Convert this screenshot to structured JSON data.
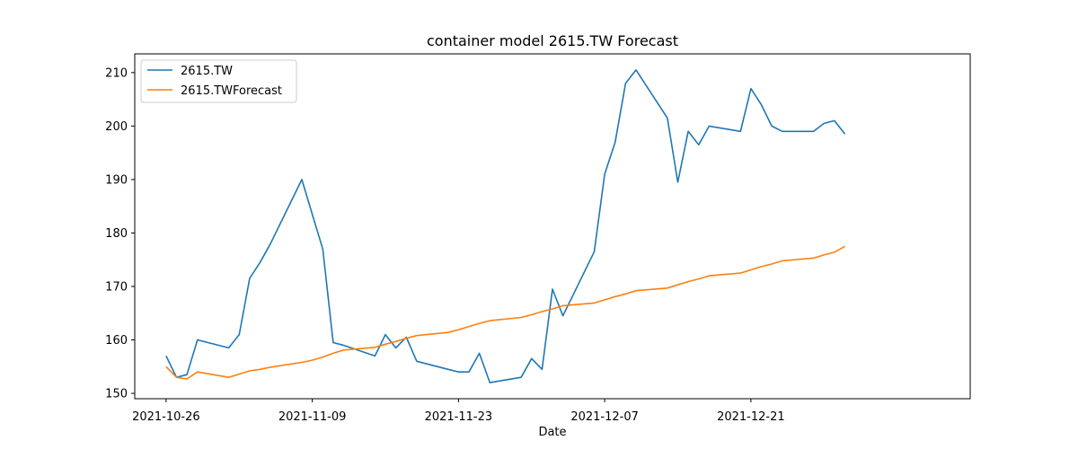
{
  "chart_data": {
    "type": "line",
    "title": "container model 2615.TW Forecast",
    "xlabel": "Date",
    "ylabel": "",
    "xlim": [
      "2021-10-23",
      "2022-01-11"
    ],
    "ylim": [
      149,
      213.5
    ],
    "x_ticks": [
      "2021-10-26",
      "2021-11-09",
      "2021-11-23",
      "2021-12-07",
      "2021-12-21"
    ],
    "y_ticks": [
      150,
      160,
      170,
      180,
      190,
      200,
      210
    ],
    "grid": false,
    "legend_position": "top-left",
    "x": [
      "2021-10-26",
      "2021-10-27",
      "2021-10-28",
      "2021-10-29",
      "2021-11-01",
      "2021-11-02",
      "2021-11-03",
      "2021-11-04",
      "2021-11-05",
      "2021-11-08",
      "2021-11-09",
      "2021-11-10",
      "2021-11-11",
      "2021-11-12",
      "2021-11-15",
      "2021-11-16",
      "2021-11-17",
      "2021-11-18",
      "2021-11-19",
      "2021-11-22",
      "2021-11-23",
      "2021-11-24",
      "2021-11-25",
      "2021-11-26",
      "2021-11-29",
      "2021-11-30",
      "2021-12-01",
      "2021-12-02",
      "2021-12-03",
      "2021-12-06",
      "2021-12-07",
      "2021-12-08",
      "2021-12-09",
      "2021-12-10",
      "2021-12-13",
      "2021-12-14",
      "2021-12-15",
      "2021-12-16",
      "2021-12-17",
      "2021-12-20",
      "2021-12-21",
      "2021-12-22",
      "2021-12-23",
      "2021-12-24",
      "2021-12-27",
      "2021-12-28",
      "2021-12-29",
      "2021-12-30"
    ],
    "series": [
      {
        "name": "2615.TW",
        "color": "#1f77b4",
        "values": [
          157,
          153,
          153.5,
          160,
          158.5,
          161,
          171.5,
          174.5,
          178,
          190,
          183.5,
          177,
          159.5,
          159,
          157,
          161,
          158.5,
          160.5,
          156,
          154.5,
          154,
          154,
          157.5,
          152,
          153,
          156.5,
          154.5,
          169.5,
          164.5,
          176.5,
          191,
          197,
          208,
          210.5,
          201.5,
          189.5,
          199,
          196.5,
          200,
          199,
          207,
          204,
          200,
          199,
          199,
          200.5,
          201,
          198.5
        ]
      },
      {
        "name": "2615.TWForecast",
        "color": "#ff7f0e",
        "values": [
          155,
          153,
          152.7,
          154,
          153,
          153.6,
          154.2,
          154.5,
          154.9,
          155.8,
          156.2,
          156.8,
          157.5,
          158.1,
          158.6,
          159.2,
          159.7,
          160.3,
          160.8,
          161.4,
          161.9,
          162.5,
          163.1,
          163.6,
          164.2,
          164.7,
          165.3,
          165.8,
          166.4,
          166.9,
          167.5,
          168.1,
          168.6,
          169.2,
          169.7,
          170.3,
          170.9,
          171.4,
          172,
          172.5,
          173.1,
          173.7,
          174.2,
          174.8,
          175.3,
          175.9,
          176.4,
          177.5
        ]
      }
    ]
  }
}
